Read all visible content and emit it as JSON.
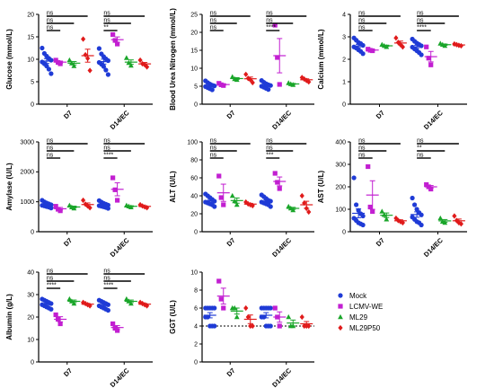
{
  "groups": [
    {
      "name": "Mock",
      "color": "#1f3bd6",
      "marker": "circle"
    },
    {
      "name": "LCMV-WE",
      "color": "#c21fd1",
      "marker": "square"
    },
    {
      "name": "ML29",
      "color": "#1aa62a",
      "marker": "triangle"
    },
    {
      "name": "ML29P50",
      "color": "#e01b1b",
      "marker": "diamond"
    }
  ],
  "chart_data": [
    {
      "type": "scatter",
      "ylabel": "Glucose (mmol/L)",
      "ylim": [
        0,
        20
      ],
      "yticks": [
        0,
        5,
        10,
        15,
        20
      ],
      "categories": [
        "D7",
        "D14/EC"
      ],
      "series": [
        {
          "group": "Mock",
          "values": [
            [
              12.5,
              11.3,
              10.7,
              10.2,
              9.8,
              9.4,
              9.0,
              8.5,
              7.8,
              6.8
            ],
            [
              12.4,
              11.2,
              10.6,
              10.1,
              9.7,
              9.3,
              8.9,
              8.4,
              7.6,
              6.6
            ]
          ]
        },
        {
          "group": "LCMV-WE",
          "values": [
            [
              9.8,
              9.3,
              9.0
            ],
            [
              15.5,
              14.2,
              13.4
            ]
          ]
        },
        {
          "group": "ML29",
          "values": [
            [
              9.8,
              9.1,
              8.5
            ],
            [
              10.3,
              9.2,
              8.6
            ]
          ]
        },
        {
          "group": "ML29P50",
          "values": [
            [
              14.5,
              11.0,
              10.2,
              7.5
            ],
            [
              9.8,
              9.0,
              8.8,
              8.3
            ]
          ]
        }
      ],
      "comparisons": [
        {
          "category": "D7",
          "labels": [
            "ns",
            "ns",
            "ns"
          ]
        },
        {
          "category": "D14/EC",
          "labels": [
            "ns",
            "ns",
            "**"
          ]
        }
      ]
    },
    {
      "type": "scatter",
      "ylabel": "Blood Urea Nitrogen (mmol/L)",
      "ylim": [
        0,
        25
      ],
      "yticks": [
        0,
        5,
        10,
        15,
        20,
        25
      ],
      "categories": [
        "D7",
        "D14/EC"
      ],
      "series": [
        {
          "group": "Mock",
          "values": [
            [
              6.5,
              6.0,
              5.6,
              5.3,
              5.1,
              4.9,
              4.6,
              4.3,
              4.0
            ],
            [
              6.6,
              6.1,
              5.7,
              5.4,
              5.2,
              5.0,
              4.7,
              4.4,
              4.1
            ]
          ]
        },
        {
          "group": "LCMV-WE",
          "values": [
            [
              5.8,
              5.4,
              5.2
            ],
            [
              22.0,
              13.0,
              5.5
            ]
          ]
        },
        {
          "group": "ML29",
          "values": [
            [
              7.6,
              7.0,
              6.8
            ],
            [
              5.9,
              5.6,
              5.4
            ]
          ]
        },
        {
          "group": "ML29P50",
          "values": [
            [
              8.3,
              7.2,
              6.8,
              6.0
            ],
            [
              7.4,
              7.0,
              6.6,
              6.2
            ]
          ]
        }
      ],
      "comparisons": [
        {
          "category": "D7",
          "labels": [
            "ns",
            "ns",
            "ns"
          ]
        },
        {
          "category": "D14/EC",
          "labels": [
            "ns",
            "ns",
            "****"
          ]
        }
      ]
    },
    {
      "type": "scatter",
      "ylabel": "Calcium (mmol/L)",
      "ylim": [
        0,
        4
      ],
      "yticks": [
        0,
        1,
        2,
        3,
        4
      ],
      "categories": [
        "D7",
        "D14/EC"
      ],
      "series": [
        {
          "group": "Mock",
          "values": [
            [
              2.95,
              2.85,
              2.75,
              2.7,
              2.62,
              2.55,
              2.5,
              2.42,
              2.35,
              2.25
            ],
            [
              2.9,
              2.8,
              2.72,
              2.66,
              2.6,
              2.54,
              2.46,
              2.38,
              2.3,
              2.2
            ]
          ]
        },
        {
          "group": "LCMV-WE",
          "values": [
            [
              2.45,
              2.4,
              2.38
            ],
            [
              2.55,
              2.05,
              1.75
            ]
          ]
        },
        {
          "group": "ML29",
          "values": [
            [
              2.65,
              2.6,
              2.55
            ],
            [
              2.7,
              2.65,
              2.6
            ]
          ]
        },
        {
          "group": "ML29P50",
          "values": [
            [
              2.95,
              2.75,
              2.65,
              2.55
            ],
            [
              2.68,
              2.65,
              2.62,
              2.6
            ]
          ]
        }
      ],
      "comparisons": [
        {
          "category": "D7",
          "labels": [
            "ns",
            "ns",
            "ns"
          ]
        },
        {
          "category": "D14/EC",
          "labels": [
            "ns",
            "ns",
            "****"
          ]
        }
      ]
    },
    {
      "type": "scatter",
      "ylabel": "Amylase (U/L)",
      "ylim": [
        0,
        3000
      ],
      "yticks": [
        0,
        1000,
        2000,
        3000
      ],
      "categories": [
        "D7",
        "D14/EC"
      ],
      "series": [
        {
          "group": "Mock",
          "values": [
            [
              1050,
              1000,
              960,
              930,
              900,
              880,
              860,
              840,
              820,
              790
            ],
            [
              1040,
              990,
              950,
              920,
              890,
              870,
              850,
              830,
              810,
              780
            ]
          ]
        },
        {
          "group": "LCMV-WE",
          "values": [
            [
              850,
              750,
              700
            ],
            [
              1800,
              1400,
              1050
            ]
          ]
        },
        {
          "group": "ML29",
          "values": [
            [
              880,
              820,
              780
            ],
            [
              880,
              850,
              820
            ]
          ]
        },
        {
          "group": "ML29P50",
          "values": [
            [
              1050,
              920,
              860,
              800
            ],
            [
              900,
              860,
              830,
              800
            ]
          ]
        }
      ],
      "comparisons": [
        {
          "category": "D7",
          "labels": [
            "ns",
            "ns",
            "ns"
          ]
        },
        {
          "category": "D14/EC",
          "labels": [
            "ns",
            "ns",
            "****"
          ]
        }
      ]
    },
    {
      "type": "scatter",
      "ylabel": "ALT (U/L)",
      "ylim": [
        0,
        100
      ],
      "yticks": [
        0,
        20,
        40,
        60,
        80,
        100
      ],
      "categories": [
        "D7",
        "D14/EC"
      ],
      "series": [
        {
          "group": "Mock",
          "values": [
            [
              42,
              40,
              38,
              36,
              34,
              33,
              32,
              31,
              30,
              28
            ],
            [
              41,
              39,
              37,
              35,
              34,
              33,
              32,
              31,
              30,
              28
            ]
          ]
        },
        {
          "group": "LCMV-WE",
          "values": [
            [
              62,
              38,
              30
            ],
            [
              65,
              55,
              48
            ]
          ]
        },
        {
          "group": "ML29",
          "values": [
            [
              40,
              34,
              30
            ],
            [
              28,
              26,
              24
            ]
          ]
        },
        {
          "group": "ML29P50",
          "values": [
            [
              33,
              31,
              30,
              29
            ],
            [
              40,
              32,
              26,
              22
            ]
          ]
        }
      ],
      "comparisons": [
        {
          "category": "D7",
          "labels": [
            "ns",
            "ns",
            "ns"
          ]
        },
        {
          "category": "D14/EC",
          "labels": [
            "ns",
            "ns",
            "***"
          ]
        }
      ]
    },
    {
      "type": "scatter",
      "ylabel": "AST (U/L)",
      "ylim": [
        0,
        400
      ],
      "yticks": [
        0,
        100,
        200,
        300,
        400
      ],
      "categories": [
        "D7",
        "D14/EC"
      ],
      "series": [
        {
          "group": "Mock",
          "values": [
            [
              240,
              120,
              95,
              80,
              70,
              60,
              50,
              40,
              35,
              30
            ],
            [
              150,
              120,
              100,
              85,
              75,
              65,
              55,
              45,
              40,
              30
            ]
          ]
        },
        {
          "group": "LCMV-WE",
          "values": [
            [
              290,
              110,
              90
            ],
            [
              210,
              200,
              190
            ]
          ]
        },
        {
          "group": "ML29",
          "values": [
            [
              90,
              75,
              55
            ],
            [
              60,
              45,
              40
            ]
          ]
        },
        {
          "group": "ML29P50",
          "values": [
            [
              60,
              50,
              45,
              40
            ],
            [
              70,
              50,
              40,
              35
            ]
          ]
        }
      ],
      "comparisons": [
        {
          "category": "D7",
          "labels": [
            "ns",
            "ns",
            "ns"
          ]
        },
        {
          "category": "D14/EC",
          "labels": [
            "ns",
            "**",
            "ns"
          ]
        }
      ]
    },
    {
      "type": "scatter",
      "ylabel": "Albumin (g/L)",
      "ylim": [
        0,
        40
      ],
      "yticks": [
        0,
        10,
        20,
        30,
        40
      ],
      "categories": [
        "D7",
        "D14/EC"
      ],
      "series": [
        {
          "group": "Mock",
          "values": [
            [
              28,
              27.5,
              27,
              26.5,
              26,
              25.5,
              25,
              24.5,
              24,
              23.5
            ],
            [
              27.5,
              27,
              26.5,
              26,
              25.5,
              25,
              24.5,
              24,
              23.5,
              23
            ]
          ]
        },
        {
          "group": "LCMV-WE",
          "values": [
            [
              21,
              19,
              17
            ],
            [
              17,
              15,
              14
            ]
          ]
        },
        {
          "group": "ML29",
          "values": [
            [
              28,
              27,
              26
            ],
            [
              28,
              27,
              26
            ]
          ]
        },
        {
          "group": "ML29P50",
          "values": [
            [
              26.5,
              26,
              25.5,
              25
            ],
            [
              26.5,
              26,
              25.5,
              25
            ]
          ]
        }
      ],
      "comparisons": [
        {
          "category": "D7",
          "labels": [
            "ns",
            "ns",
            "****"
          ]
        },
        {
          "category": "D14/EC",
          "labels": [
            "ns",
            "ns",
            "****"
          ]
        }
      ]
    },
    {
      "type": "scatter",
      "ylabel": "GGT (U/L)",
      "ylim": [
        0,
        10
      ],
      "yticks": [
        0,
        2,
        4,
        6,
        8,
        10
      ],
      "categories": [
        "D7",
        "D14/EC"
      ],
      "reference_line": 4,
      "series": [
        {
          "group": "Mock",
          "values": [
            [
              6,
              6,
              6,
              6,
              6,
              5,
              5,
              4,
              4,
              4
            ],
            [
              6,
              6,
              6,
              6,
              6,
              5,
              5,
              4,
              4,
              4
            ]
          ]
        },
        {
          "group": "LCMV-WE",
          "values": [
            [
              9,
              7,
              6
            ],
            [
              6,
              5,
              4
            ]
          ]
        },
        {
          "group": "ML29",
          "values": [
            [
              6,
              6,
              5
            ],
            [
              5,
              4,
              4
            ]
          ]
        },
        {
          "group": "ML29P50",
          "values": [
            [
              6,
              5,
              4,
              4
            ],
            [
              5,
              4,
              4,
              4
            ]
          ]
        }
      ],
      "comparisons": []
    }
  ]
}
